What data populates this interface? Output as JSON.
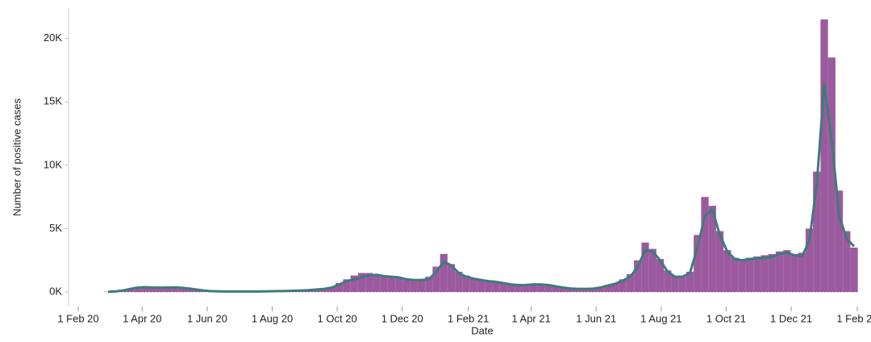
{
  "chart_data": {
    "type": "bar",
    "x_label": "Date",
    "y_label": "Number of positive cases",
    "x": [
      "2020-02-29",
      "2020-03-07",
      "2020-03-14",
      "2020-03-21",
      "2020-03-28",
      "2020-04-04",
      "2020-04-11",
      "2020-04-18",
      "2020-04-25",
      "2020-05-02",
      "2020-05-09",
      "2020-05-16",
      "2020-05-23",
      "2020-05-30",
      "2020-06-06",
      "2020-06-13",
      "2020-06-20",
      "2020-06-27",
      "2020-07-04",
      "2020-07-11",
      "2020-07-18",
      "2020-07-25",
      "2020-08-01",
      "2020-08-08",
      "2020-08-15",
      "2020-08-22",
      "2020-08-29",
      "2020-09-05",
      "2020-09-12",
      "2020-09-19",
      "2020-09-26",
      "2020-10-03",
      "2020-10-10",
      "2020-10-17",
      "2020-10-24",
      "2020-10-31",
      "2020-11-07",
      "2020-11-14",
      "2020-11-21",
      "2020-11-28",
      "2020-12-05",
      "2020-12-12",
      "2020-12-19",
      "2020-12-26",
      "2021-01-02",
      "2021-01-09",
      "2021-01-16",
      "2021-01-23",
      "2021-01-30",
      "2021-02-06",
      "2021-02-13",
      "2021-02-20",
      "2021-02-27",
      "2021-03-06",
      "2021-03-13",
      "2021-03-20",
      "2021-03-27",
      "2021-04-03",
      "2021-04-10",
      "2021-04-17",
      "2021-04-24",
      "2021-05-01",
      "2021-05-08",
      "2021-05-15",
      "2021-05-22",
      "2021-05-29",
      "2021-06-05",
      "2021-06-12",
      "2021-06-19",
      "2021-06-26",
      "2021-07-03",
      "2021-07-10",
      "2021-07-17",
      "2021-07-24",
      "2021-07-31",
      "2021-08-07",
      "2021-08-14",
      "2021-08-21",
      "2021-08-28",
      "2021-09-04",
      "2021-09-11",
      "2021-09-18",
      "2021-09-25",
      "2021-10-02",
      "2021-10-09",
      "2021-10-16",
      "2021-10-23",
      "2021-10-30",
      "2021-11-06",
      "2021-11-13",
      "2021-11-20",
      "2021-11-27",
      "2021-12-04",
      "2021-12-11",
      "2021-12-18",
      "2021-12-25",
      "2022-01-01",
      "2022-01-08",
      "2022-01-15",
      "2022-01-22",
      "2022-01-29"
    ],
    "series": [
      {
        "type": "bar",
        "color": "#9b5a9e",
        "values": [
          20,
          60,
          150,
          280,
          400,
          420,
          350,
          380,
          400,
          420,
          350,
          280,
          200,
          120,
          70,
          60,
          50,
          40,
          40,
          50,
          40,
          60,
          70,
          80,
          90,
          110,
          140,
          170,
          220,
          280,
          400,
          700,
          1000,
          1300,
          1500,
          1500,
          1400,
          1300,
          1200,
          1100,
          950,
          900,
          950,
          1200,
          2000,
          3000,
          2200,
          1600,
          1300,
          1100,
          1000,
          900,
          850,
          750,
          650,
          600,
          550,
          600,
          650,
          600,
          480,
          370,
          300,
          260,
          250,
          280,
          380,
          550,
          700,
          1000,
          1400,
          2500,
          3900,
          3400,
          2600,
          1700,
          1300,
          1200,
          1600,
          4500,
          7500,
          6800,
          4800,
          3300,
          2700,
          2600,
          2700,
          2800,
          2900,
          3000,
          3200,
          3300,
          3000,
          3100,
          5000,
          9500,
          21500,
          18500,
          8000,
          4800,
          3500
        ]
      },
      {
        "type": "line",
        "color": "#3d7b7b",
        "values": [
          20,
          50,
          120,
          250,
          350,
          380,
          360,
          340,
          360,
          370,
          330,
          260,
          180,
          100,
          60,
          50,
          40,
          40,
          40,
          40,
          40,
          50,
          60,
          70,
          80,
          100,
          120,
          150,
          200,
          250,
          350,
          600,
          850,
          1000,
          1150,
          1300,
          1350,
          1250,
          1200,
          1150,
          1000,
          950,
          950,
          1000,
          1600,
          2400,
          2100,
          1500,
          1200,
          1050,
          950,
          850,
          800,
          700,
          600,
          550,
          550,
          600,
          600,
          550,
          450,
          350,
          280,
          250,
          250,
          260,
          350,
          500,
          650,
          900,
          1200,
          2000,
          3300,
          3200,
          2500,
          1600,
          1200,
          1200,
          1500,
          3500,
          6000,
          6500,
          4500,
          3200,
          2600,
          2500,
          2600,
          2650,
          2700,
          2750,
          3000,
          3100,
          2900,
          2800,
          4000,
          8500,
          16400,
          12000,
          6000,
          4200,
          3600
        ]
      }
    ],
    "xlim": [
      "2020-02-01",
      "2022-02-01"
    ],
    "xticks": [
      {
        "value": "2020-02-01",
        "label": "1 Feb 20"
      },
      {
        "value": "2020-04-01",
        "label": "1 Apr 20"
      },
      {
        "value": "2020-06-01",
        "label": "1 Jun 20"
      },
      {
        "value": "2020-08-01",
        "label": "1 Aug 20"
      },
      {
        "value": "2020-10-01",
        "label": "1 Oct 20"
      },
      {
        "value": "2020-12-01",
        "label": "1 Dec 20"
      },
      {
        "value": "2021-02-01",
        "label": "1 Feb 21"
      },
      {
        "value": "2021-04-01",
        "label": "1 Apr 21"
      },
      {
        "value": "2021-06-01",
        "label": "1 Jun 21"
      },
      {
        "value": "2021-08-01",
        "label": "1 Aug 21"
      },
      {
        "value": "2021-10-01",
        "label": "1 Oct 21"
      },
      {
        "value": "2021-12-01",
        "label": "1 Dec 21"
      },
      {
        "value": "2022-02-01",
        "label": "1 Feb 22"
      }
    ],
    "ylim": [
      0,
      22400
    ],
    "yticks": [
      {
        "value": 0,
        "label": "0K"
      },
      {
        "value": 5000,
        "label": "5K"
      },
      {
        "value": 10000,
        "label": "10K"
      },
      {
        "value": 15000,
        "label": "15K"
      },
      {
        "value": 20000,
        "label": "20K"
      }
    ]
  }
}
